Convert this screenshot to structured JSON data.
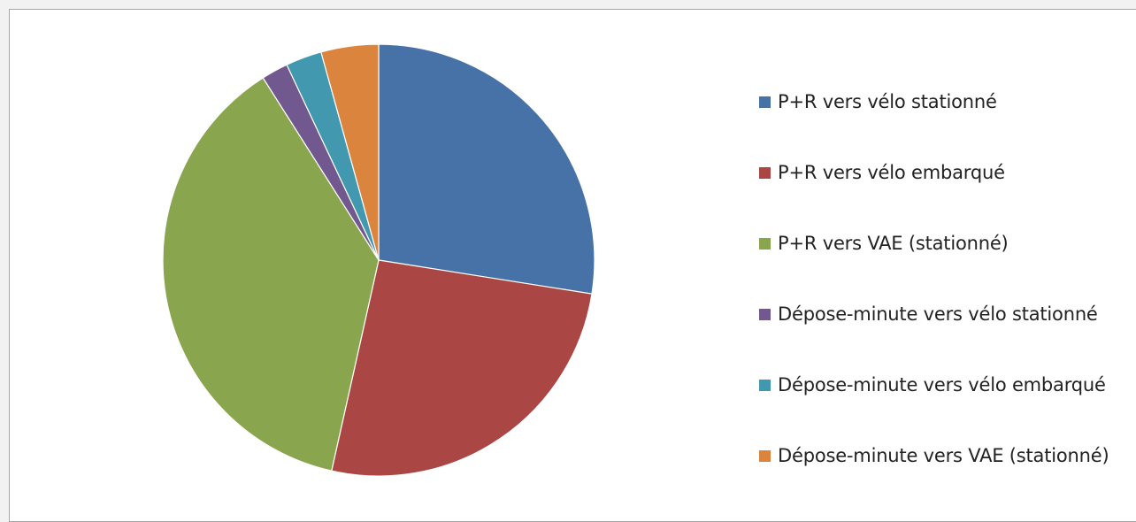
{
  "chart_data": {
    "type": "pie",
    "title": "",
    "start_angle_deg": 0,
    "direction": "clockwise",
    "slices": [
      {
        "label": "P+R vers vélo stationné",
        "value": 27.5,
        "color": "#4672a8"
      },
      {
        "label": "P+R vers vélo embarqué",
        "value": 26.0,
        "color": "#aa4643"
      },
      {
        "label": "P+R vers VAE (stationné)",
        "value": 37.5,
        "color": "#89a54e"
      },
      {
        "label": "Dépose-minute vers vélo stationné",
        "value": 2.0,
        "color": "#71588f"
      },
      {
        "label": "Dépose-minute vers vélo embarqué",
        "value": 2.7,
        "color": "#4198af"
      },
      {
        "label": "Dépose-minute vers VAE (stationné)",
        "value": 4.3,
        "color": "#db843d"
      }
    ],
    "legend_position": "right"
  }
}
